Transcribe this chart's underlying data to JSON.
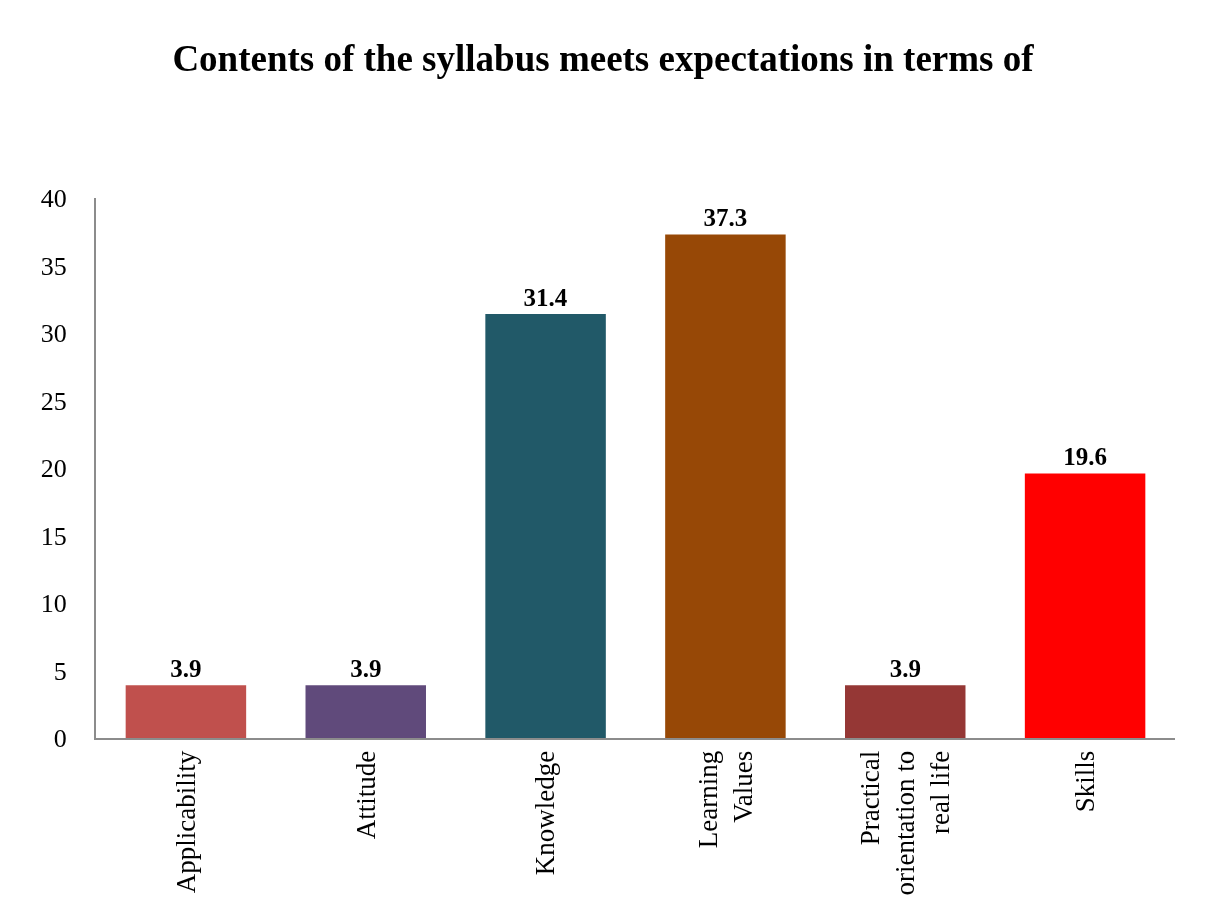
{
  "chart_data": {
    "type": "bar",
    "title": "Contents of the syllabus meets expectations in terms of",
    "categories": [
      "Applicability",
      "Attitude",
      "Knowledge",
      "Learning Values",
      "Practical orientation to real life",
      "Skills"
    ],
    "values": [
      3.9,
      3.9,
      31.4,
      37.3,
      3.9,
      19.6
    ],
    "colors": [
      "#c0504d",
      "#604a7b",
      "#215968",
      "#974806",
      "#953735",
      "#ff0000"
    ],
    "ylim": [
      0,
      40
    ],
    "yticks": [
      0,
      5,
      10,
      15,
      20,
      25,
      30,
      35,
      40
    ],
    "data_labels": true,
    "grid": false,
    "legend": false
  }
}
